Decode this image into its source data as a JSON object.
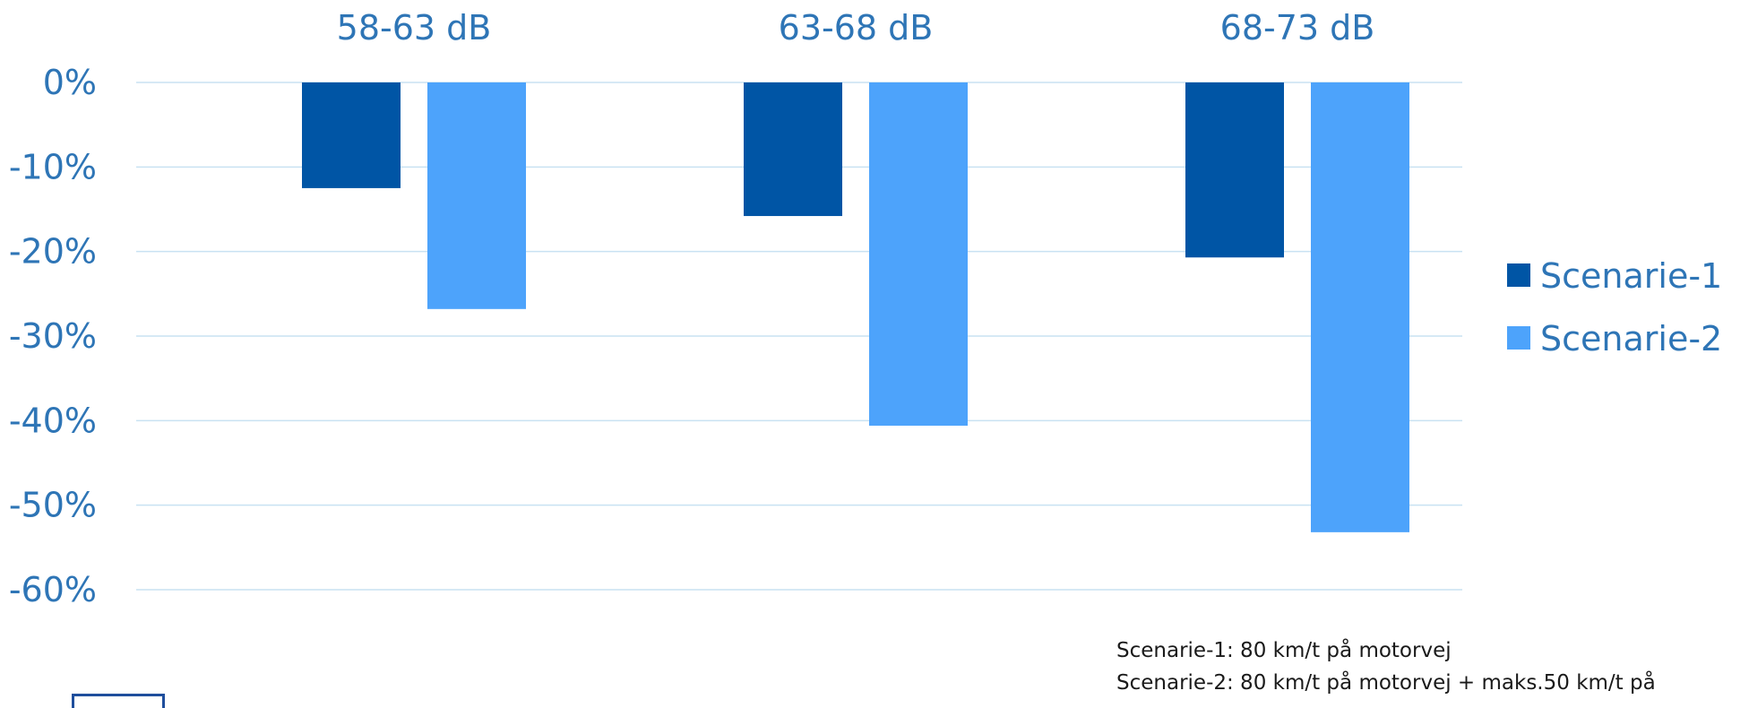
{
  "chart_data": {
    "type": "bar",
    "categories": [
      "58-63 dB",
      "63-68 dB",
      "68-73 dB"
    ],
    "series": [
      {
        "name": "Scenarie-1",
        "color": "#0055a5",
        "values": [
          -12.5,
          -15.8,
          -20.7
        ]
      },
      {
        "name": "Scenarie-2",
        "color": "#4da3fb",
        "values": [
          -26.8,
          -40.6,
          -53.2
        ]
      }
    ],
    "ylim": [
      -60,
      0
    ],
    "yticks": [
      0,
      -10,
      -20,
      -30,
      -40,
      -50,
      -60
    ],
    "ytick_labels": [
      "0%",
      "-10%",
      "-20%",
      "-30%",
      "-40%",
      "-50%",
      "-60%"
    ],
    "category_axis_position": "top",
    "grid": true,
    "legend_position": "right",
    "title": "",
    "xlabel": "",
    "ylabel": ""
  },
  "notes": {
    "line1": "Scenarie-1: 80 km/t på motorvej",
    "line2": "Scenarie-2: 80 km/t på motorvej +  maks.50 km/t på"
  },
  "colors": {
    "axis_text": "#2e75b6",
    "gridline": "#c9e2f2"
  }
}
